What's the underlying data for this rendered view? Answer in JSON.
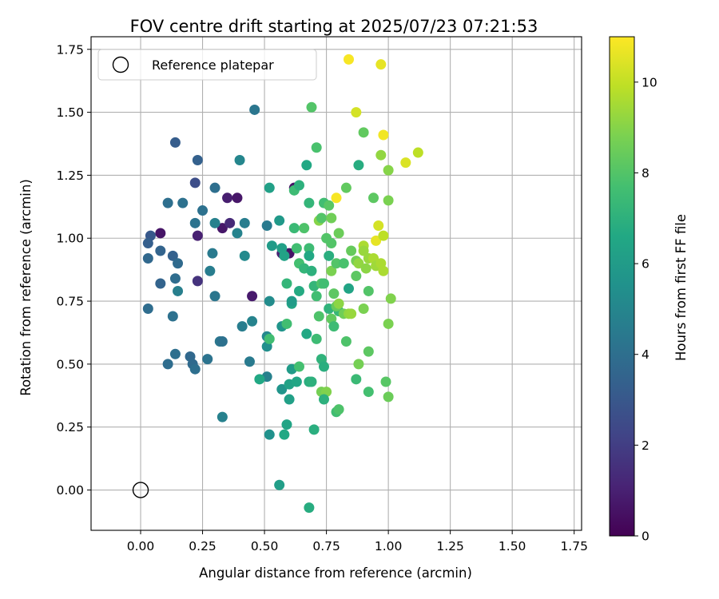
{
  "chart_data": {
    "type": "scatter",
    "title": "FOV centre drift starting at 2025/07/23 07:21:53",
    "xlabel": "Angular distance from reference (arcmin)",
    "ylabel": "Rotation from reference (arcmin)",
    "xlim": [
      -0.2,
      1.78
    ],
    "ylim": [
      -0.16,
      1.8
    ],
    "xticks": [
      "0.00",
      "0.25",
      "0.50",
      "0.75",
      "1.00",
      "1.25",
      "1.50",
      "1.75"
    ],
    "yticks": [
      "0.00",
      "0.25",
      "0.50",
      "0.75",
      "1.00",
      "1.25",
      "1.50",
      "1.75"
    ],
    "grid": true,
    "legend": {
      "position": "top-left",
      "label": "Reference platepar"
    },
    "reference_point": {
      "x": 0.0,
      "y": 0.0
    },
    "colorbar": {
      "label": "Hours from first FF file",
      "range": [
        0,
        11
      ],
      "ticks": [
        "0",
        "2",
        "4",
        "6",
        "8",
        "10"
      ],
      "colormap": "viridis"
    },
    "points": [
      {
        "x": 0.08,
        "y": 1.02,
        "h": 0.6
      },
      {
        "x": 0.23,
        "y": 1.01,
        "h": 1.0
      },
      {
        "x": 0.23,
        "y": 0.83,
        "h": 1.6
      },
      {
        "x": 0.33,
        "y": 1.04,
        "h": 0.7
      },
      {
        "x": 0.35,
        "y": 1.16,
        "h": 0.9
      },
      {
        "x": 0.36,
        "y": 1.06,
        "h": 1.3
      },
      {
        "x": 0.39,
        "y": 1.16,
        "h": 0.7
      },
      {
        "x": 0.45,
        "y": 0.77,
        "h": 0.8
      },
      {
        "x": 0.22,
        "y": 1.22,
        "h": 2.6
      },
      {
        "x": 0.14,
        "y": 1.38,
        "h": 3.2
      },
      {
        "x": 0.23,
        "y": 1.31,
        "h": 3.4
      },
      {
        "x": 0.04,
        "y": 1.01,
        "h": 3.0
      },
      {
        "x": 0.03,
        "y": 0.98,
        "h": 3.3
      },
      {
        "x": 0.08,
        "y": 0.95,
        "h": 3.5
      },
      {
        "x": 0.03,
        "y": 0.92,
        "h": 3.7
      },
      {
        "x": 0.13,
        "y": 0.93,
        "h": 3.4
      },
      {
        "x": 0.15,
        "y": 0.9,
        "h": 3.8
      },
      {
        "x": 0.08,
        "y": 0.82,
        "h": 3.5
      },
      {
        "x": 0.14,
        "y": 0.84,
        "h": 3.9
      },
      {
        "x": 0.15,
        "y": 0.79,
        "h": 4.7
      },
      {
        "x": 0.03,
        "y": 0.72,
        "h": 3.9
      },
      {
        "x": 0.13,
        "y": 0.69,
        "h": 4.1
      },
      {
        "x": 0.11,
        "y": 1.14,
        "h": 4.0
      },
      {
        "x": 0.17,
        "y": 1.14,
        "h": 4.1
      },
      {
        "x": 0.25,
        "y": 1.11,
        "h": 4.1
      },
      {
        "x": 0.3,
        "y": 1.2,
        "h": 4.0
      },
      {
        "x": 0.22,
        "y": 1.06,
        "h": 4.2
      },
      {
        "x": 0.29,
        "y": 0.94,
        "h": 4.5
      },
      {
        "x": 0.28,
        "y": 0.87,
        "h": 4.6
      },
      {
        "x": 0.3,
        "y": 0.77,
        "h": 4.3
      },
      {
        "x": 0.14,
        "y": 0.54,
        "h": 4.0
      },
      {
        "x": 0.2,
        "y": 0.53,
        "h": 3.7
      },
      {
        "x": 0.21,
        "y": 0.5,
        "h": 3.8
      },
      {
        "x": 0.22,
        "y": 0.48,
        "h": 4.0
      },
      {
        "x": 0.11,
        "y": 0.5,
        "h": 3.9
      },
      {
        "x": 0.27,
        "y": 0.52,
        "h": 4.2
      },
      {
        "x": 0.32,
        "y": 0.59,
        "h": 4.3
      },
      {
        "x": 0.33,
        "y": 0.59,
        "h": 4.1
      },
      {
        "x": 0.33,
        "y": 0.29,
        "h": 4.8
      },
      {
        "x": 0.3,
        "y": 1.06,
        "h": 4.8
      },
      {
        "x": 0.39,
        "y": 1.02,
        "h": 4.9
      },
      {
        "x": 0.42,
        "y": 1.06,
        "h": 4.6
      },
      {
        "x": 0.46,
        "y": 1.51,
        "h": 4.3
      },
      {
        "x": 0.4,
        "y": 1.31,
        "h": 5.0
      },
      {
        "x": 0.42,
        "y": 0.93,
        "h": 5.2
      },
      {
        "x": 0.41,
        "y": 0.65,
        "h": 4.6
      },
      {
        "x": 0.44,
        "y": 0.51,
        "h": 4.5
      },
      {
        "x": 0.45,
        "y": 0.67,
        "h": 4.9
      },
      {
        "x": 0.51,
        "y": 1.05,
        "h": 4.5
      },
      {
        "x": 0.52,
        "y": 0.75,
        "h": 5.3
      },
      {
        "x": 0.51,
        "y": 0.61,
        "h": 5.1
      },
      {
        "x": 0.51,
        "y": 0.57,
        "h": 5.4
      },
      {
        "x": 0.51,
        "y": 0.45,
        "h": 4.8
      },
      {
        "x": 0.52,
        "y": 0.22,
        "h": 5.5
      },
      {
        "x": 0.48,
        "y": 0.44,
        "h": 6.6
      },
      {
        "x": 0.52,
        "y": 0.6,
        "h": 7.6
      },
      {
        "x": 0.52,
        "y": 1.2,
        "h": 6.2
      },
      {
        "x": 0.53,
        "y": 0.97,
        "h": 6.0
      },
      {
        "x": 0.56,
        "y": 1.07,
        "h": 5.9
      },
      {
        "x": 0.57,
        "y": 0.94,
        "h": 1.0
      },
      {
        "x": 0.6,
        "y": 0.94,
        "h": 0.6
      },
      {
        "x": 0.62,
        "y": 1.2,
        "h": 0.6
      },
      {
        "x": 0.57,
        "y": 0.96,
        "h": 6.2
      },
      {
        "x": 0.58,
        "y": 0.93,
        "h": 6.3
      },
      {
        "x": 0.59,
        "y": 0.82,
        "h": 7.2
      },
      {
        "x": 0.57,
        "y": 0.65,
        "h": 5.7
      },
      {
        "x": 0.57,
        "y": 0.4,
        "h": 5.7
      },
      {
        "x": 0.56,
        "y": 0.02,
        "h": 6.1
      },
      {
        "x": 0.58,
        "y": 0.22,
        "h": 6.6
      },
      {
        "x": 0.59,
        "y": 0.26,
        "h": 6.4
      },
      {
        "x": 0.6,
        "y": 0.36,
        "h": 6.2
      },
      {
        "x": 0.6,
        "y": 0.42,
        "h": 6.3
      },
      {
        "x": 0.59,
        "y": 0.66,
        "h": 7.6
      },
      {
        "x": 0.61,
        "y": 0.74,
        "h": 6.4
      },
      {
        "x": 0.61,
        "y": 0.75,
        "h": 6.0
      },
      {
        "x": 0.61,
        "y": 0.48,
        "h": 6.0
      },
      {
        "x": 0.63,
        "y": 0.43,
        "h": 6.5
      },
      {
        "x": 0.64,
        "y": 0.49,
        "h": 7.7
      },
      {
        "x": 0.62,
        "y": 1.19,
        "h": 7.5
      },
      {
        "x": 0.64,
        "y": 1.21,
        "h": 7.0
      },
      {
        "x": 0.62,
        "y": 1.04,
        "h": 7.4
      },
      {
        "x": 0.63,
        "y": 0.96,
        "h": 7.6
      },
      {
        "x": 0.64,
        "y": 0.9,
        "h": 7.7
      },
      {
        "x": 0.66,
        "y": 0.88,
        "h": 7.2
      },
      {
        "x": 0.64,
        "y": 0.79,
        "h": 6.7
      },
      {
        "x": 0.66,
        "y": 1.04,
        "h": 7.9
      },
      {
        "x": 0.67,
        "y": 1.29,
        "h": 6.6
      },
      {
        "x": 0.68,
        "y": 1.14,
        "h": 7.2
      },
      {
        "x": 0.68,
        "y": 0.96,
        "h": 7.5
      },
      {
        "x": 0.68,
        "y": 0.93,
        "h": 6.6
      },
      {
        "x": 0.67,
        "y": 0.62,
        "h": 6.6
      },
      {
        "x": 0.68,
        "y": 0.43,
        "h": 6.9
      },
      {
        "x": 0.69,
        "y": 0.43,
        "h": 7.0
      },
      {
        "x": 0.68,
        "y": -0.07,
        "h": 6.8
      },
      {
        "x": 0.69,
        "y": 1.52,
        "h": 8.0
      },
      {
        "x": 0.71,
        "y": 1.36,
        "h": 7.8
      },
      {
        "x": 0.69,
        "y": 0.87,
        "h": 7.0
      },
      {
        "x": 0.7,
        "y": 0.81,
        "h": 7.2
      },
      {
        "x": 0.71,
        "y": 0.77,
        "h": 7.6
      },
      {
        "x": 0.71,
        "y": 0.6,
        "h": 7.5
      },
      {
        "x": 0.7,
        "y": 0.24,
        "h": 6.9
      },
      {
        "x": 0.72,
        "y": 1.07,
        "h": 9.0
      },
      {
        "x": 0.73,
        "y": 1.08,
        "h": 8.0
      },
      {
        "x": 0.74,
        "y": 1.14,
        "h": 7.6
      },
      {
        "x": 0.73,
        "y": 0.82,
        "h": 7.9
      },
      {
        "x": 0.74,
        "y": 0.82,
        "h": 7.6
      },
      {
        "x": 0.72,
        "y": 0.69,
        "h": 7.9
      },
      {
        "x": 0.73,
        "y": 0.52,
        "h": 7.1
      },
      {
        "x": 0.74,
        "y": 0.49,
        "h": 6.9
      },
      {
        "x": 0.73,
        "y": 0.39,
        "h": 8.7
      },
      {
        "x": 0.75,
        "y": 0.39,
        "h": 8.9
      },
      {
        "x": 0.74,
        "y": 0.36,
        "h": 7.0
      },
      {
        "x": 0.75,
        "y": 1.0,
        "h": 8.0
      },
      {
        "x": 0.76,
        "y": 1.13,
        "h": 8.1
      },
      {
        "x": 0.76,
        "y": 0.93,
        "h": 6.9
      },
      {
        "x": 0.77,
        "y": 0.98,
        "h": 8.0
      },
      {
        "x": 0.77,
        "y": 0.87,
        "h": 8.8
      },
      {
        "x": 0.76,
        "y": 0.72,
        "h": 7.1
      },
      {
        "x": 0.77,
        "y": 0.68,
        "h": 8.3
      },
      {
        "x": 0.78,
        "y": 0.65,
        "h": 7.5
      },
      {
        "x": 0.78,
        "y": 0.78,
        "h": 8.2
      },
      {
        "x": 0.77,
        "y": 1.08,
        "h": 8.6
      },
      {
        "x": 0.79,
        "y": 1.16,
        "h": 10.9
      },
      {
        "x": 0.79,
        "y": 0.9,
        "h": 8.0
      },
      {
        "x": 0.8,
        "y": 0.71,
        "h": 7.3
      },
      {
        "x": 0.79,
        "y": 0.73,
        "h": 8.4
      },
      {
        "x": 0.8,
        "y": 0.74,
        "h": 9.1
      },
      {
        "x": 0.79,
        "y": 0.31,
        "h": 7.6
      },
      {
        "x": 0.8,
        "y": 0.32,
        "h": 7.9
      },
      {
        "x": 0.8,
        "y": 1.02,
        "h": 8.5
      },
      {
        "x": 0.82,
        "y": 0.9,
        "h": 7.8
      },
      {
        "x": 0.83,
        "y": 1.2,
        "h": 8.3
      },
      {
        "x": 0.82,
        "y": 0.7,
        "h": 8.6
      },
      {
        "x": 0.84,
        "y": 0.7,
        "h": 9.2
      },
      {
        "x": 0.85,
        "y": 0.7,
        "h": 9.3
      },
      {
        "x": 0.83,
        "y": 0.59,
        "h": 7.9
      },
      {
        "x": 0.84,
        "y": 0.8,
        "h": 6.4
      },
      {
        "x": 0.85,
        "y": 0.95,
        "h": 8.4
      },
      {
        "x": 0.84,
        "y": 1.71,
        "h": 10.9
      },
      {
        "x": 0.87,
        "y": 1.5,
        "h": 10.3
      },
      {
        "x": 0.88,
        "y": 1.29,
        "h": 6.8
      },
      {
        "x": 0.87,
        "y": 0.91,
        "h": 8.7
      },
      {
        "x": 0.87,
        "y": 0.85,
        "h": 8.2
      },
      {
        "x": 0.88,
        "y": 0.9,
        "h": 9.2
      },
      {
        "x": 0.87,
        "y": 0.44,
        "h": 7.4
      },
      {
        "x": 0.88,
        "y": 0.5,
        "h": 8.7
      },
      {
        "x": 0.9,
        "y": 1.42,
        "h": 8.3
      },
      {
        "x": 0.9,
        "y": 0.97,
        "h": 9.6
      },
      {
        "x": 0.9,
        "y": 0.95,
        "h": 9.3
      },
      {
        "x": 0.9,
        "y": 0.72,
        "h": 8.8
      },
      {
        "x": 0.91,
        "y": 0.88,
        "h": 9.1
      },
      {
        "x": 0.92,
        "y": 0.92,
        "h": 9.3
      },
      {
        "x": 0.92,
        "y": 0.55,
        "h": 8.2
      },
      {
        "x": 0.92,
        "y": 0.79,
        "h": 8.0
      },
      {
        "x": 0.92,
        "y": 0.39,
        "h": 7.7
      },
      {
        "x": 0.94,
        "y": 1.16,
        "h": 8.2
      },
      {
        "x": 0.94,
        "y": 0.92,
        "h": 9.6
      },
      {
        "x": 0.95,
        "y": 0.99,
        "h": 10.6
      },
      {
        "x": 0.95,
        "y": 0.89,
        "h": 9.4
      },
      {
        "x": 0.96,
        "y": 1.05,
        "h": 10.3
      },
      {
        "x": 0.97,
        "y": 1.69,
        "h": 10.6
      },
      {
        "x": 0.97,
        "y": 1.33,
        "h": 9.2
      },
      {
        "x": 0.97,
        "y": 0.9,
        "h": 9.6
      },
      {
        "x": 0.98,
        "y": 1.41,
        "h": 10.8
      },
      {
        "x": 0.98,
        "y": 1.01,
        "h": 9.9
      },
      {
        "x": 0.98,
        "y": 0.87,
        "h": 9.6
      },
      {
        "x": 0.99,
        "y": 0.43,
        "h": 8.1
      },
      {
        "x": 1.0,
        "y": 1.27,
        "h": 9.0
      },
      {
        "x": 1.0,
        "y": 1.15,
        "h": 8.8
      },
      {
        "x": 1.0,
        "y": 0.66,
        "h": 8.8
      },
      {
        "x": 1.0,
        "y": 0.37,
        "h": 8.5
      },
      {
        "x": 1.01,
        "y": 0.76,
        "h": 8.9
      },
      {
        "x": 1.07,
        "y": 1.3,
        "h": 10.4
      },
      {
        "x": 1.12,
        "y": 1.34,
        "h": 9.9
      }
    ]
  }
}
